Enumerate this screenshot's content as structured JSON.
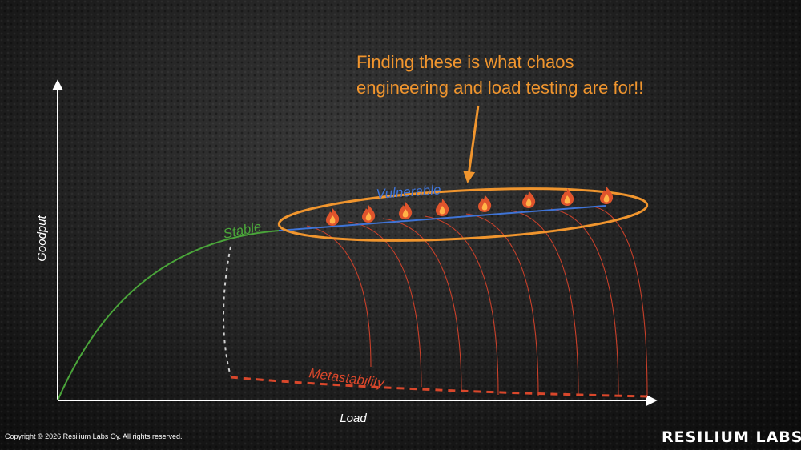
{
  "annotation": {
    "line1": "Finding these is what chaos",
    "line2": "engineering and load testing are for!!"
  },
  "axes": {
    "y_label": "Goodput",
    "x_label": "Load"
  },
  "regions": {
    "stable": "Stable",
    "vulnerable": "Vulnerable",
    "metastability": "Metastability"
  },
  "fire_count": 8,
  "footer": {
    "copyright": "Copyright © 2026 Resilium Labs Oy. All rights reserved.",
    "logo": "RESILIUM LABS"
  },
  "colors": {
    "stable": "#4aa53a",
    "vulnerable": "#3f74d6",
    "metastability": "#d9472b",
    "collapse": "#c9402a",
    "annotation": "#f0952e",
    "axis": "#ffffff"
  }
}
